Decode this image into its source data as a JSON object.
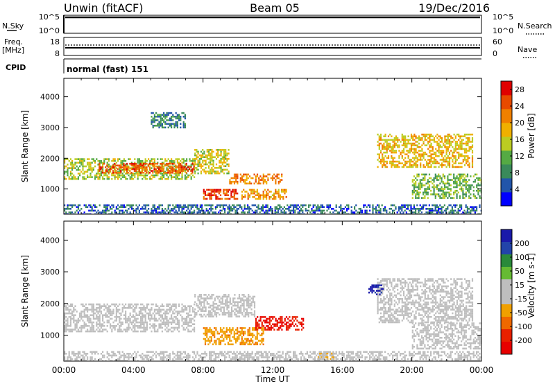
{
  "header": {
    "station": "Unwin (fitACF)",
    "beam": "Beam 05",
    "date": "19/Dec/2016"
  },
  "nsky_panel": {
    "left_label": "N.Sky",
    "right_label": "N.Search",
    "left_ticks": [
      "10^5",
      "10^0"
    ],
    "right_ticks": [
      "10^5",
      "10^0"
    ]
  },
  "freq_panel": {
    "left_label_line1": "Freq.",
    "left_label_line2": "[MHz]",
    "right_label": "Nave",
    "left_ticks": [
      "18",
      "8"
    ],
    "right_ticks": [
      "60",
      "0"
    ]
  },
  "cpid_panel": {
    "label": "CPID",
    "text": "normal (fast) 151"
  },
  "x_axis": {
    "label": "Time UT",
    "ticks": [
      "00:00",
      "04:00",
      "08:00",
      "12:00",
      "16:00",
      "20:00",
      "00:00"
    ]
  },
  "colors": {
    "power_scale": [
      "#0000ff",
      "#2255aa",
      "#3a8a5a",
      "#55aa44",
      "#bbcc22",
      "#f0b000",
      "#f08000",
      "#e84a00",
      "#e00000"
    ],
    "velocity_scale": [
      "#1a1aaa",
      "#2244aa",
      "#2a8a3a",
      "#66bb33",
      "#bebebe",
      "#bebebe",
      "#f0a000",
      "#f06800",
      "#e82000",
      "#e80000"
    ]
  },
  "chart_data": [
    {
      "type": "heatmap",
      "panel": "power",
      "ylabel": "Slant Range [km]",
      "xlabel": "",
      "yticks": [
        1000,
        2000,
        3000,
        4000
      ],
      "ylim": [
        180,
        4600
      ],
      "xlim_hours": [
        0,
        24
      ],
      "colorbar": {
        "label": "Power [dB]",
        "ticks": [
          "4",
          "8",
          "12",
          "16",
          "20",
          "24",
          "28"
        ],
        "range": [
          0,
          30
        ]
      },
      "regions": [
        {
          "t0": 0.0,
          "t1": 7.5,
          "r0": 1300,
          "r1": 2000,
          "value": 14
        },
        {
          "t0": 2.0,
          "t1": 7.5,
          "r0": 1550,
          "r1": 1850,
          "value": 24
        },
        {
          "t0": 7.5,
          "t1": 9.5,
          "r0": 1500,
          "r1": 2300,
          "value": 16
        },
        {
          "t0": 8.0,
          "t1": 10.0,
          "r0": 650,
          "r1": 1000,
          "value": 26
        },
        {
          "t0": 9.5,
          "t1": 12.5,
          "r0": 1150,
          "r1": 1500,
          "value": 22
        },
        {
          "t0": 10.2,
          "t1": 12.8,
          "r0": 700,
          "r1": 1000,
          "value": 20
        },
        {
          "t0": 5.0,
          "t1": 7.0,
          "r0": 3000,
          "r1": 3500,
          "value": 8
        },
        {
          "t0": 18.0,
          "t1": 23.5,
          "r0": 1700,
          "r1": 2800,
          "value": 18
        },
        {
          "t0": 20.0,
          "t1": 24.0,
          "r0": 700,
          "r1": 1500,
          "value": 12
        },
        {
          "t0": 0.0,
          "t1": 24.0,
          "r0": 200,
          "r1": 500,
          "value": 6
        }
      ]
    },
    {
      "type": "heatmap",
      "panel": "velocity",
      "ylabel": "Slant Range [km]",
      "xlabel": "Time UT",
      "yticks": [
        1000,
        2000,
        3000,
        4000
      ],
      "ylim": [
        180,
        4600
      ],
      "xlim_hours": [
        0,
        24
      ],
      "colorbar": {
        "label": "Velocity [m s-1]",
        "ticks": [
          "200",
          "100",
          "50",
          "15",
          "-15",
          "-50",
          "-100",
          "-200"
        ],
        "range": [
          -250,
          250
        ]
      },
      "regions": [
        {
          "t0": 0.0,
          "t1": 7.5,
          "r0": 1100,
          "r1": 2000,
          "value": 0
        },
        {
          "t0": 7.5,
          "t1": 11.0,
          "r0": 1600,
          "r1": 2300,
          "value": 0
        },
        {
          "t0": 8.0,
          "t1": 11.5,
          "r0": 700,
          "r1": 1250,
          "value": -90
        },
        {
          "t0": 11.0,
          "t1": 13.8,
          "r0": 1200,
          "r1": 1600,
          "value": -200
        },
        {
          "t0": 18.0,
          "t1": 23.5,
          "r0": 1400,
          "r1": 2800,
          "value": 0
        },
        {
          "t0": 20.0,
          "t1": 24.0,
          "r0": 600,
          "r1": 1400,
          "value": 0
        },
        {
          "t0": 17.5,
          "t1": 18.3,
          "r0": 2300,
          "r1": 2600,
          "value": 210
        },
        {
          "t0": 14.5,
          "t1": 15.5,
          "r0": 250,
          "r1": 450,
          "value": -80
        },
        {
          "t0": 0.0,
          "t1": 24.0,
          "r0": 200,
          "r1": 500,
          "value": 35
        }
      ]
    }
  ]
}
